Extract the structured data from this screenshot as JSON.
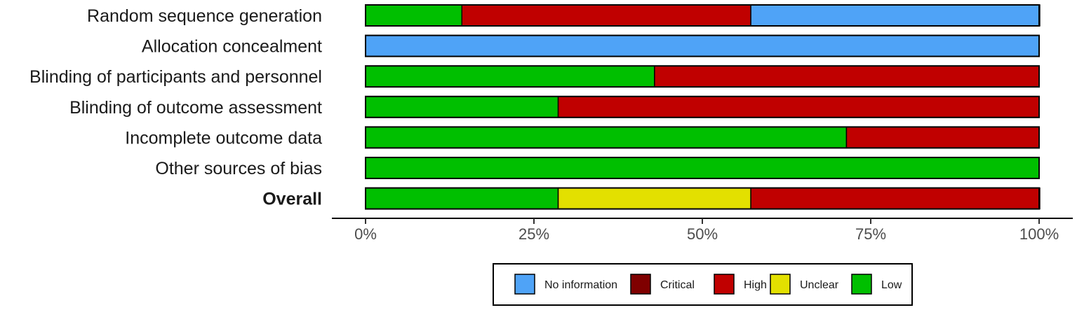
{
  "chart_data": {
    "type": "bar",
    "orientation": "horizontal",
    "stacked": true,
    "title": "",
    "xlabel": "",
    "ylabel": "",
    "xlim": [
      0,
      100
    ],
    "x_unit": "%",
    "x_ticks": [
      0,
      25,
      50,
      75,
      100
    ],
    "x_tick_labels": [
      "0%",
      "25%",
      "50%",
      "75%",
      "100%"
    ],
    "grid": false,
    "legend_position": "bottom",
    "categories": [
      "Random sequence generation",
      "Allocation concealment",
      "Blinding of participants and personnel",
      "Blinding of outcome assessment",
      "Incomplete outcome data",
      "Other sources of bias",
      "Overall"
    ],
    "bold_categories": [
      "Overall"
    ],
    "stack_order": [
      "Low",
      "Unclear",
      "High",
      "Critical",
      "No information"
    ],
    "series": [
      {
        "name": "No information",
        "color": "#4fa3f7",
        "values": [
          42.9,
          100,
          0,
          0,
          0,
          0,
          0
        ]
      },
      {
        "name": "Critical",
        "color": "#7f0000",
        "values": [
          0,
          0,
          0,
          0,
          0,
          0,
          0
        ]
      },
      {
        "name": "High",
        "color": "#c00000",
        "values": [
          42.9,
          0,
          57.1,
          71.4,
          28.6,
          0,
          42.9
        ]
      },
      {
        "name": "Unclear",
        "color": "#e3e000",
        "values": [
          0,
          0,
          0,
          0,
          0,
          0,
          28.6
        ]
      },
      {
        "name": "Low",
        "color": "#00bf00",
        "values": [
          14.3,
          0,
          42.9,
          28.6,
          71.4,
          100,
          28.6
        ]
      }
    ]
  }
}
